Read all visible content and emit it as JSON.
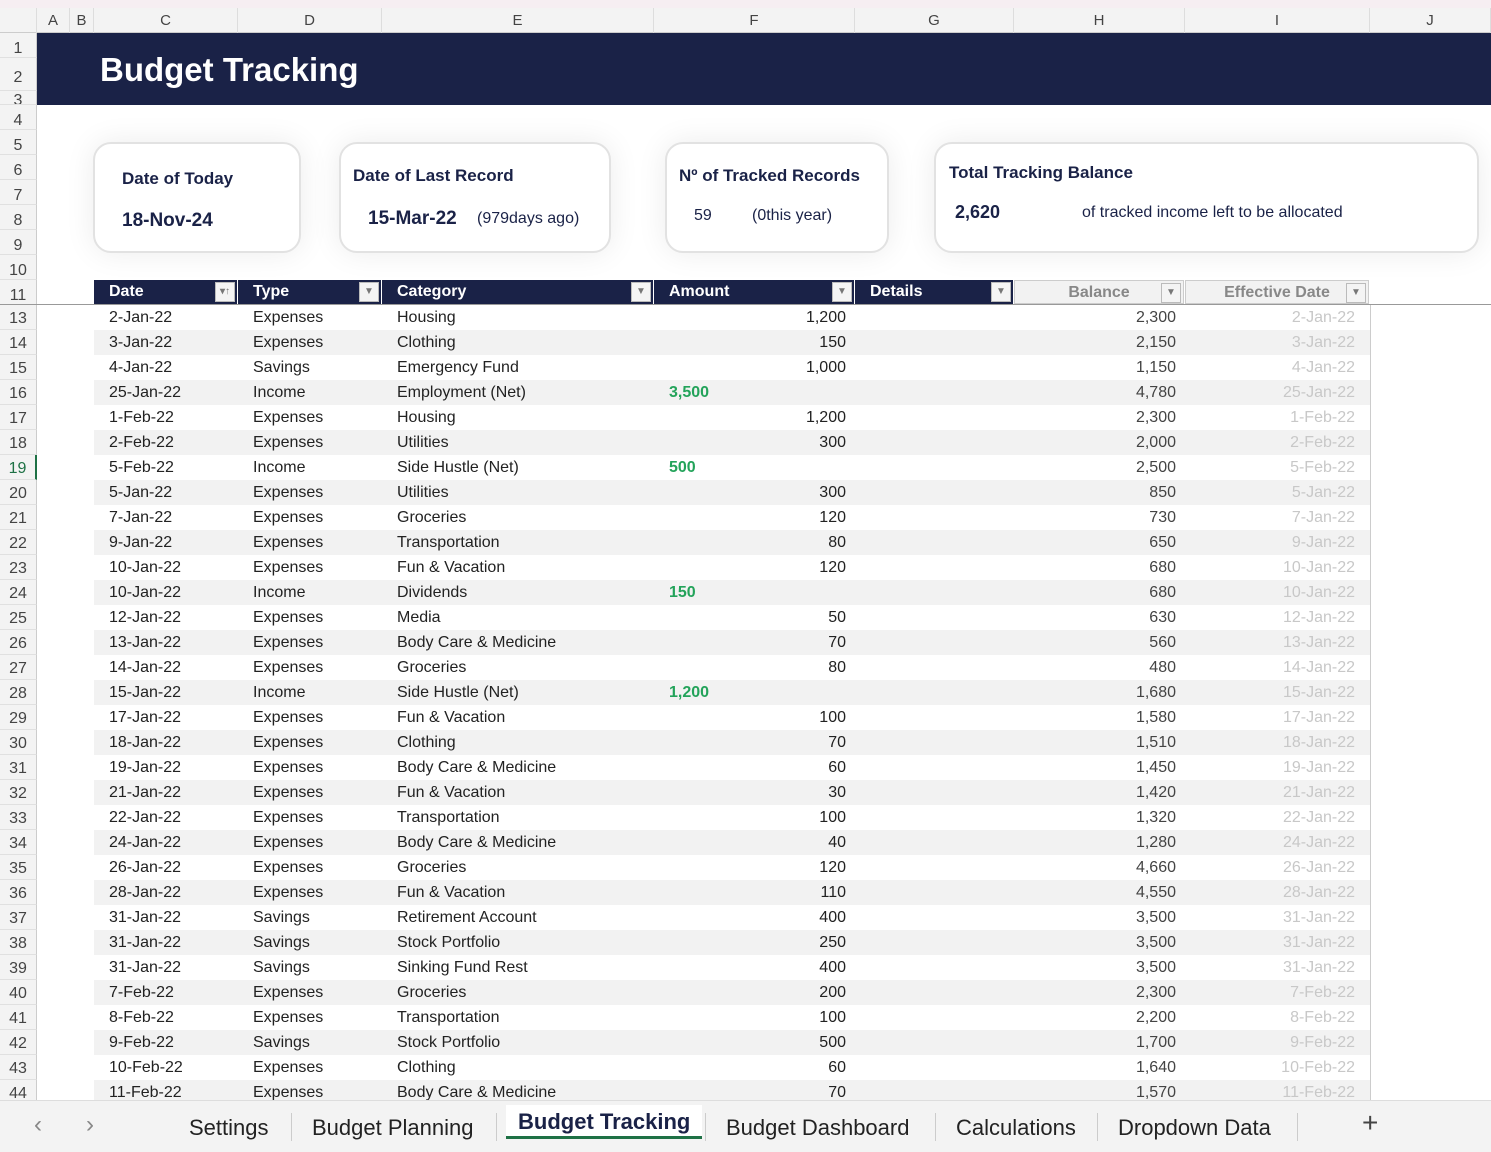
{
  "columns": [
    "A",
    "B",
    "C",
    "D",
    "E",
    "F",
    "G",
    "H",
    "I",
    "J"
  ],
  "title": "Budget Tracking",
  "cards": {
    "today": {
      "label": "Date of Today",
      "value": "18-Nov-24"
    },
    "last": {
      "label": "Date of Last Record",
      "value": "15-Mar-22",
      "note": "(979days ago)"
    },
    "records": {
      "label": "Nº of Tracked Records",
      "value": "59",
      "note": "(0this year)"
    },
    "balance": {
      "label": "Total Tracking Balance",
      "value": "2,620",
      "note": "of tracked income left to be allocated"
    }
  },
  "table": {
    "headers": [
      "Date",
      "Type",
      "Category",
      "Amount",
      "Details",
      "Balance",
      "Effective Date"
    ],
    "rows": [
      [
        13,
        "2-Jan-22",
        "Expenses",
        "Housing",
        "1,200",
        "2,300",
        "2-Jan-22"
      ],
      [
        14,
        "3-Jan-22",
        "Expenses",
        "Clothing",
        "150",
        "2,150",
        "3-Jan-22"
      ],
      [
        15,
        "4-Jan-22",
        "Savings",
        "Emergency Fund",
        "1,000",
        "1,150",
        "4-Jan-22"
      ],
      [
        16,
        "25-Jan-22",
        "Income",
        "Employment (Net)",
        "3,500",
        "4,780",
        "25-Jan-22"
      ],
      [
        17,
        "1-Feb-22",
        "Expenses",
        "Housing",
        "1,200",
        "2,300",
        "1-Feb-22"
      ],
      [
        18,
        "2-Feb-22",
        "Expenses",
        "Utilities",
        "300",
        "2,000",
        "2-Feb-22"
      ],
      [
        19,
        "5-Feb-22",
        "Income",
        "Side Hustle (Net)",
        "500",
        "2,500",
        "5-Feb-22"
      ],
      [
        20,
        "5-Jan-22",
        "Expenses",
        "Utilities",
        "300",
        "850",
        "5-Jan-22"
      ],
      [
        21,
        "7-Jan-22",
        "Expenses",
        "Groceries",
        "120",
        "730",
        "7-Jan-22"
      ],
      [
        22,
        "9-Jan-22",
        "Expenses",
        "Transportation",
        "80",
        "650",
        "9-Jan-22"
      ],
      [
        23,
        "10-Jan-22",
        "Expenses",
        "Fun & Vacation",
        "120",
        "680",
        "10-Jan-22"
      ],
      [
        24,
        "10-Jan-22",
        "Income",
        "Dividends",
        "150",
        "680",
        "10-Jan-22"
      ],
      [
        25,
        "12-Jan-22",
        "Expenses",
        "Media",
        "50",
        "630",
        "12-Jan-22"
      ],
      [
        26,
        "13-Jan-22",
        "Expenses",
        "Body  Care & Medicine",
        "70",
        "560",
        "13-Jan-22"
      ],
      [
        27,
        "14-Jan-22",
        "Expenses",
        "Groceries",
        "80",
        "480",
        "14-Jan-22"
      ],
      [
        28,
        "15-Jan-22",
        "Income",
        "Side Hustle (Net)",
        "1,200",
        "1,680",
        "15-Jan-22"
      ],
      [
        29,
        "17-Jan-22",
        "Expenses",
        "Fun & Vacation",
        "100",
        "1,580",
        "17-Jan-22"
      ],
      [
        30,
        "18-Jan-22",
        "Expenses",
        "Clothing",
        "70",
        "1,510",
        "18-Jan-22"
      ],
      [
        31,
        "19-Jan-22",
        "Expenses",
        "Body  Care & Medicine",
        "60",
        "1,450",
        "19-Jan-22"
      ],
      [
        32,
        "21-Jan-22",
        "Expenses",
        "Fun & Vacation",
        "30",
        "1,420",
        "21-Jan-22"
      ],
      [
        33,
        "22-Jan-22",
        "Expenses",
        "Transportation",
        "100",
        "1,320",
        "22-Jan-22"
      ],
      [
        34,
        "24-Jan-22",
        "Expenses",
        "Body  Care & Medicine",
        "40",
        "1,280",
        "24-Jan-22"
      ],
      [
        35,
        "26-Jan-22",
        "Expenses",
        "Groceries",
        "120",
        "4,660",
        "26-Jan-22"
      ],
      [
        36,
        "28-Jan-22",
        "Expenses",
        "Fun & Vacation",
        "110",
        "4,550",
        "28-Jan-22"
      ],
      [
        37,
        "31-Jan-22",
        "Savings",
        "Retirement Account",
        "400",
        "3,500",
        "31-Jan-22"
      ],
      [
        38,
        "31-Jan-22",
        "Savings",
        "Stock Portfolio",
        "250",
        "3,500",
        "31-Jan-22"
      ],
      [
        39,
        "31-Jan-22",
        "Savings",
        "Sinking Fund Rest",
        "400",
        "3,500",
        "31-Jan-22"
      ],
      [
        40,
        "7-Feb-22",
        "Expenses",
        "Groceries",
        "200",
        "2,300",
        "7-Feb-22"
      ],
      [
        41,
        "8-Feb-22",
        "Expenses",
        "Transportation",
        "100",
        "2,200",
        "8-Feb-22"
      ],
      [
        42,
        "9-Feb-22",
        "Savings",
        "Stock Portfolio",
        "500",
        "1,700",
        "9-Feb-22"
      ],
      [
        43,
        "10-Feb-22",
        "Expenses",
        "Clothing",
        "60",
        "1,640",
        "10-Feb-22"
      ],
      [
        44,
        "11-Feb-22",
        "Expenses",
        "Body  Care & Medicine",
        "70",
        "1,570",
        "11-Feb-22"
      ]
    ]
  },
  "tabs": [
    "Settings",
    "Budget Planning",
    "Budget Tracking",
    "Budget Dashboard",
    "Calculations",
    "Dropdown Data"
  ],
  "active_tab": "Budget Tracking",
  "add_sheet": "+",
  "colors": {
    "navy": "#1a2247",
    "income": "#23a35a"
  }
}
